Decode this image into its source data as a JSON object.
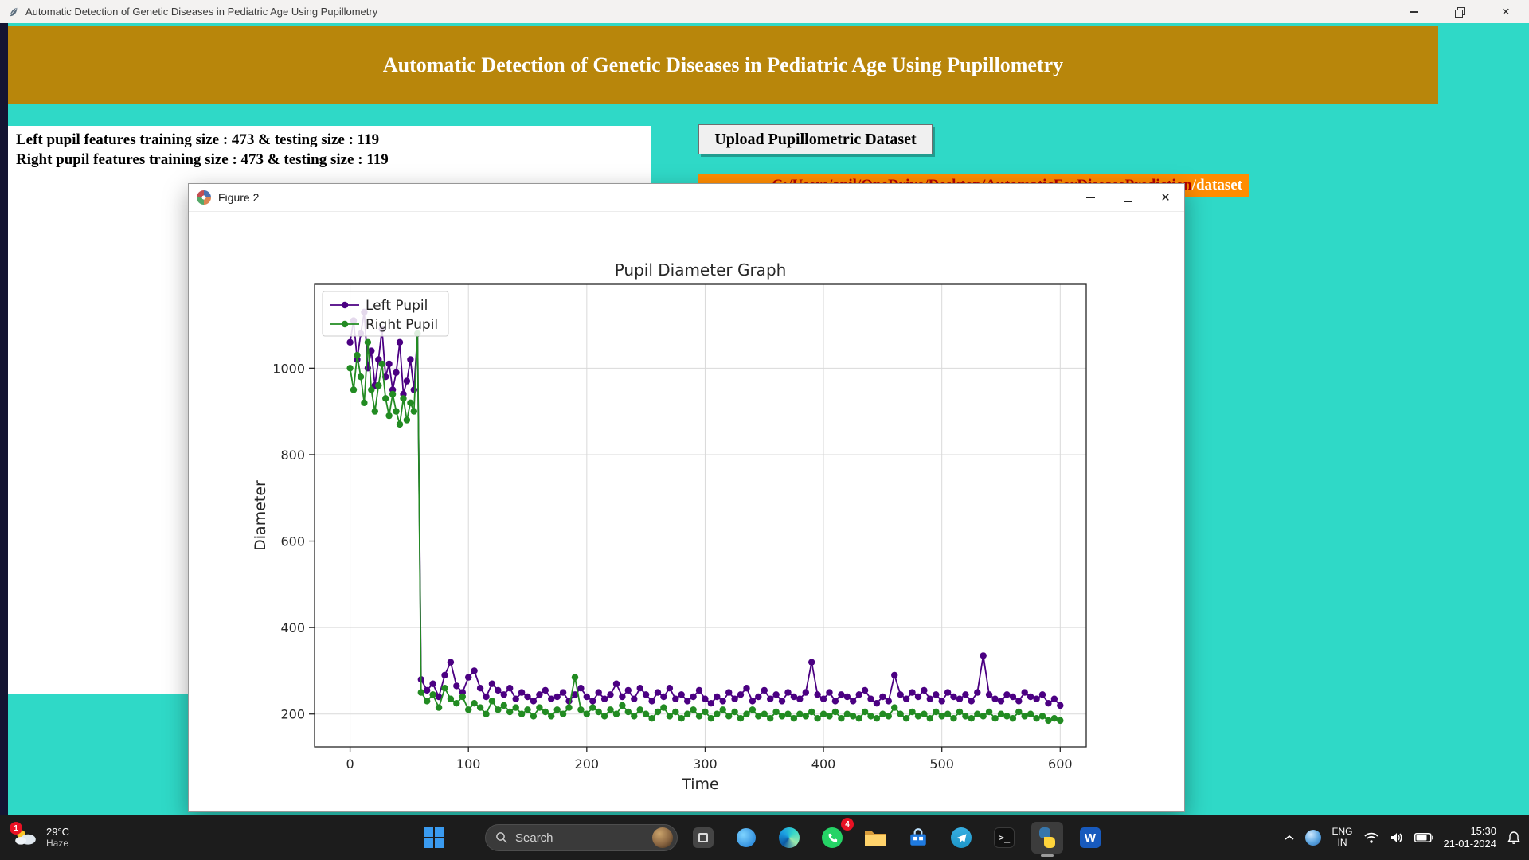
{
  "window": {
    "title": "Automatic Detection of Genetic Diseases in Pediatric Age Using Pupillometry",
    "controls": {
      "close": "×"
    }
  },
  "header": {
    "title": "Automatic Detection of Genetic Diseases in Pediatric Age Using Pupillometry"
  },
  "output_panel": {
    "lines": [
      "Left pupil features training size : 473 & testing size : 119",
      "Right pupil features training size : 473 & testing size : 119"
    ]
  },
  "upload": {
    "button_label": "Upload Pupillometric Dataset"
  },
  "dataset_path": {
    "prefix": "C:/Users/anil/OneDrive/Desktop/AutomaticForDiseasePrediction",
    "suffix": "/dataset"
  },
  "figure_window": {
    "title": "Figure 2",
    "controls": {
      "close": "×"
    }
  },
  "chart_data": {
    "type": "line",
    "title": "Pupil Diameter Graph",
    "xlabel": "Time",
    "ylabel": "Diameter",
    "xlim": [
      -30,
      622
    ],
    "ylim": [
      124,
      1194
    ],
    "xticks": [
      0,
      100,
      200,
      300,
      400,
      500,
      600
    ],
    "yticks": [
      200,
      400,
      600,
      800,
      1000
    ],
    "grid": true,
    "legend_position": "upper-left",
    "x": [
      0,
      3,
      6,
      9,
      12,
      15,
      18,
      21,
      24,
      27,
      30,
      33,
      36,
      39,
      42,
      45,
      48,
      51,
      54,
      57,
      60,
      65,
      70,
      75,
      80,
      85,
      90,
      95,
      100,
      105,
      110,
      115,
      120,
      125,
      130,
      135,
      140,
      145,
      150,
      155,
      160,
      165,
      170,
      175,
      180,
      185,
      190,
      195,
      200,
      205,
      210,
      215,
      220,
      225,
      230,
      235,
      240,
      245,
      250,
      255,
      260,
      265,
      270,
      275,
      280,
      285,
      290,
      295,
      300,
      305,
      310,
      315,
      320,
      325,
      330,
      335,
      340,
      345,
      350,
      355,
      360,
      365,
      370,
      375,
      380,
      385,
      390,
      395,
      400,
      405,
      410,
      415,
      420,
      425,
      430,
      435,
      440,
      445,
      450,
      455,
      460,
      465,
      470,
      475,
      480,
      485,
      490,
      495,
      500,
      505,
      510,
      515,
      520,
      525,
      530,
      535,
      540,
      545,
      550,
      555,
      560,
      565,
      570,
      575,
      580,
      585,
      590,
      595,
      600
    ],
    "series": [
      {
        "name": "Left Pupil",
        "color": "#4B0082",
        "values": [
          1060,
          1110,
          1020,
          1080,
          1130,
          1000,
          1040,
          960,
          1020,
          1090,
          980,
          1010,
          950,
          990,
          1060,
          940,
          970,
          1020,
          950,
          1080,
          280,
          255,
          270,
          240,
          290,
          320,
          265,
          250,
          285,
          300,
          260,
          240,
          270,
          255,
          245,
          260,
          235,
          250,
          240,
          230,
          245,
          255,
          235,
          240,
          250,
          230,
          245,
          260,
          240,
          230,
          250,
          235,
          245,
          270,
          240,
          255,
          235,
          260,
          245,
          230,
          250,
          240,
          260,
          235,
          245,
          230,
          240,
          255,
          235,
          225,
          240,
          230,
          250,
          235,
          245,
          260,
          230,
          240,
          255,
          235,
          245,
          230,
          250,
          240,
          235,
          250,
          320,
          245,
          235,
          250,
          230,
          245,
          240,
          230,
          245,
          255,
          235,
          225,
          240,
          230,
          290,
          245,
          235,
          250,
          240,
          255,
          235,
          245,
          230,
          250,
          240,
          235,
          245,
          230,
          250,
          335,
          245,
          235,
          230,
          245,
          240,
          230,
          250,
          240,
          235,
          245,
          225,
          235,
          220
        ]
      },
      {
        "name": "Right Pupil",
        "color": "#228B22",
        "values": [
          1000,
          950,
          1030,
          980,
          920,
          1060,
          950,
          900,
          960,
          1010,
          930,
          890,
          940,
          900,
          870,
          930,
          880,
          920,
          900,
          1080,
          250,
          230,
          245,
          215,
          260,
          235,
          225,
          240,
          210,
          225,
          215,
          200,
          230,
          210,
          220,
          205,
          215,
          200,
          210,
          195,
          215,
          205,
          195,
          210,
          200,
          215,
          285,
          210,
          200,
          215,
          205,
          195,
          210,
          200,
          220,
          205,
          195,
          210,
          200,
          190,
          205,
          215,
          195,
          205,
          190,
          200,
          210,
          195,
          205,
          190,
          200,
          210,
          195,
          205,
          190,
          200,
          210,
          195,
          200,
          190,
          205,
          195,
          200,
          190,
          200,
          195,
          205,
          190,
          200,
          195,
          205,
          190,
          200,
          195,
          190,
          205,
          195,
          190,
          200,
          195,
          215,
          200,
          190,
          205,
          195,
          200,
          190,
          205,
          195,
          200,
          190,
          205,
          195,
          190,
          200,
          195,
          205,
          190,
          200,
          195,
          190,
          205,
          195,
          200,
          190,
          195,
          185,
          190,
          185
        ]
      }
    ]
  },
  "taskbar": {
    "weather": {
      "temp": "29°C",
      "condition": "Haze",
      "badge": "1"
    },
    "search_placeholder": "Search",
    "whatsapp_badge": "4",
    "terminal_glyph": ">_",
    "word_glyph": "W",
    "tray": {
      "lang_line1": "ENG",
      "lang_line2": "IN",
      "time": "15:30",
      "date": "21-01-2024"
    }
  },
  "colors": {
    "desktop_turquoise": "#2fd9c7",
    "header_gold": "#b8860b",
    "strip_orange": "#ff8c00",
    "taskbar_bg": "#1c1c1c",
    "badge_red": "#e81123"
  }
}
